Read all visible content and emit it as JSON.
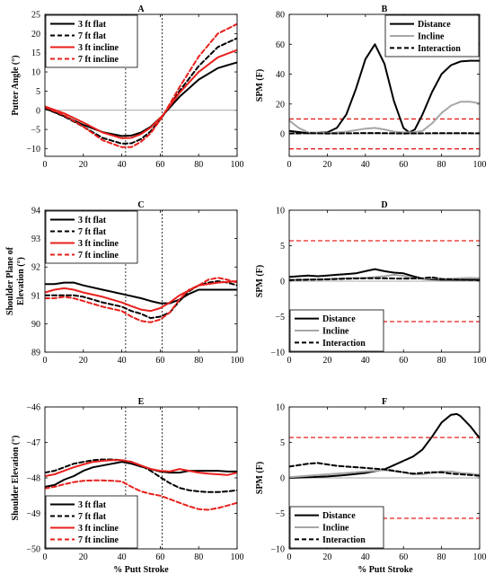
{
  "figure": {
    "xlabel": "% Putt Stroke"
  },
  "chart_data": [
    {
      "id": "A",
      "type": "line",
      "title": "A",
      "xlabel": "",
      "ylabel": "Putter Angle (°)",
      "xlim": [
        0,
        100
      ],
      "ylim": [
        -12,
        25
      ],
      "xticks": [
        0,
        20,
        40,
        60,
        80,
        100
      ],
      "yticks": [
        -10,
        -5,
        0,
        5,
        10,
        15,
        20,
        25
      ],
      "legend_position": "top-left",
      "zero_line": true,
      "vlines": [
        42,
        61
      ],
      "series": [
        {
          "name": "3 ft flat",
          "color": "#000000",
          "dash": "solid",
          "x": [
            0,
            10,
            20,
            30,
            40,
            45,
            50,
            55,
            61,
            70,
            80,
            90,
            100
          ],
          "y": [
            0.5,
            -1.5,
            -3.8,
            -5.7,
            -6.7,
            -6.6,
            -5.8,
            -4.3,
            -1.5,
            3.5,
            8.0,
            11.0,
            12.5
          ]
        },
        {
          "name": "7 ft flat",
          "color": "#000000",
          "dash": "dash",
          "x": [
            0,
            10,
            20,
            30,
            40,
            45,
            50,
            55,
            61,
            70,
            80,
            90,
            100
          ],
          "y": [
            0.5,
            -1.6,
            -4.3,
            -7.2,
            -8.7,
            -8.6,
            -7.5,
            -5.5,
            -1.8,
            5.0,
            11.5,
            16.5,
            18.8
          ]
        },
        {
          "name": "3 ft incline",
          "color": "#e8201c",
          "dash": "solid",
          "x": [
            0,
            10,
            20,
            30,
            40,
            45,
            50,
            55,
            61,
            70,
            80,
            90,
            100
          ],
          "y": [
            1.0,
            -0.8,
            -3.2,
            -5.8,
            -7.3,
            -7.2,
            -6.2,
            -4.5,
            -1.5,
            4.5,
            10.0,
            13.8,
            15.7
          ]
        },
        {
          "name": "7 ft incline",
          "color": "#e8201c",
          "dash": "dash",
          "x": [
            0,
            10,
            20,
            30,
            40,
            45,
            50,
            55,
            61,
            70,
            80,
            90,
            100
          ],
          "y": [
            0.8,
            -1.3,
            -4.3,
            -7.8,
            -9.6,
            -9.6,
            -8.2,
            -6.0,
            -1.8,
            6.0,
            14.0,
            20.0,
            22.5
          ]
        }
      ]
    },
    {
      "id": "B",
      "type": "line",
      "title": "B",
      "xlabel": "",
      "ylabel": "SPM (F)",
      "xlim": [
        0,
        100
      ],
      "ylim": [
        -15,
        80
      ],
      "xticks": [
        0,
        20,
        40,
        60,
        80,
        100
      ],
      "yticks": [
        0,
        20,
        40,
        60,
        80
      ],
      "legend_position": "top-right",
      "zero_line": true,
      "hthresholds": [
        10,
        -10
      ],
      "series": [
        {
          "name": "Distance",
          "color": "#000000",
          "dash": "solid",
          "x": [
            0,
            10,
            20,
            25,
            30,
            35,
            40,
            45,
            50,
            55,
            60,
            63,
            66,
            70,
            75,
            80,
            85,
            90,
            95,
            100
          ],
          "y": [
            2,
            0.5,
            1,
            4,
            13,
            30,
            50,
            60,
            47,
            22,
            4,
            1,
            3,
            13,
            28,
            40,
            46,
            48.5,
            49,
            49
          ]
        },
        {
          "name": "Incline",
          "color": "#a6a6a6",
          "dash": "solid",
          "x": [
            0,
            5,
            10,
            20,
            30,
            40,
            45,
            50,
            55,
            60,
            65,
            70,
            75,
            80,
            85,
            90,
            95,
            100
          ],
          "y": [
            9,
            4,
            1,
            0.5,
            1.5,
            3.5,
            4,
            3,
            1.5,
            1,
            1,
            2,
            7,
            14,
            19,
            21.5,
            21.5,
            20.5
          ]
        },
        {
          "name": "Interaction",
          "color": "#000000",
          "dash": "dash",
          "x": [
            0,
            10,
            20,
            30,
            40,
            50,
            60,
            70,
            80,
            90,
            100
          ],
          "y": [
            0.3,
            0.5,
            0.3,
            0.4,
            0.6,
            0.5,
            0.3,
            0.4,
            0.5,
            0.5,
            0.4
          ]
        }
      ]
    },
    {
      "id": "C",
      "type": "line",
      "title": "C",
      "xlabel": "",
      "ylabel": "Shoulder Plane of Elevation (°)",
      "xlim": [
        0,
        100
      ],
      "ylim": [
        89,
        94
      ],
      "xticks": [
        0,
        20,
        40,
        60,
        80,
        100
      ],
      "yticks": [
        89,
        90,
        91,
        92,
        93,
        94
      ],
      "legend_position": "top-left",
      "zero_line": false,
      "vlines": [
        42,
        61
      ],
      "series": [
        {
          "name": "3 ft flat",
          "color": "#000000",
          "dash": "solid",
          "x": [
            0,
            5,
            10,
            15,
            20,
            30,
            40,
            50,
            55,
            60,
            65,
            70,
            75,
            80,
            90,
            100
          ],
          "y": [
            91.4,
            91.4,
            91.45,
            91.45,
            91.35,
            91.2,
            91.05,
            90.9,
            90.8,
            90.72,
            90.72,
            90.85,
            91.05,
            91.2,
            91.2,
            91.2
          ]
        },
        {
          "name": "7 ft flat",
          "color": "#000000",
          "dash": "dash",
          "x": [
            0,
            5,
            10,
            15,
            20,
            30,
            40,
            45,
            50,
            55,
            60,
            65,
            70,
            75,
            80,
            85,
            90,
            95,
            100
          ],
          "y": [
            91.0,
            91.0,
            91.0,
            91.0,
            90.95,
            90.75,
            90.6,
            90.45,
            90.35,
            90.2,
            90.25,
            90.4,
            90.8,
            91.15,
            91.35,
            91.45,
            91.5,
            91.45,
            91.35
          ]
        },
        {
          "name": "3 ft incline",
          "color": "#e8201c",
          "dash": "solid",
          "x": [
            0,
            5,
            10,
            15,
            20,
            30,
            40,
            45,
            50,
            55,
            60,
            65,
            70,
            80,
            90,
            100
          ],
          "y": [
            91.1,
            91.2,
            91.25,
            91.2,
            91.1,
            90.95,
            90.75,
            90.62,
            90.5,
            90.45,
            90.55,
            90.75,
            91.0,
            91.35,
            91.45,
            91.5
          ]
        },
        {
          "name": "7 ft incline",
          "color": "#e8201c",
          "dash": "dash",
          "x": [
            0,
            5,
            10,
            15,
            20,
            30,
            40,
            45,
            50,
            55,
            60,
            65,
            70,
            75,
            80,
            85,
            90,
            95,
            100
          ],
          "y": [
            90.9,
            90.9,
            90.95,
            90.9,
            90.8,
            90.6,
            90.45,
            90.25,
            90.1,
            90.05,
            90.15,
            90.4,
            90.85,
            91.2,
            91.35,
            91.55,
            91.62,
            91.55,
            91.45
          ]
        }
      ]
    },
    {
      "id": "D",
      "type": "line",
      "title": "D",
      "xlabel": "",
      "ylabel": "SPM (F)",
      "xlim": [
        0,
        100
      ],
      "ylim": [
        -10,
        10
      ],
      "xticks": [
        0,
        20,
        40,
        60,
        80,
        100
      ],
      "yticks": [
        -10,
        -5,
        0,
        5,
        10
      ],
      "legend_position": "bottom-left",
      "zero_line": true,
      "hthresholds": [
        5.7,
        -5.7
      ],
      "series": [
        {
          "name": "Distance",
          "color": "#000000",
          "dash": "solid",
          "x": [
            0,
            5,
            10,
            15,
            20,
            25,
            30,
            35,
            40,
            45,
            50,
            55,
            60,
            65,
            70,
            75,
            80,
            85,
            90,
            95,
            100
          ],
          "y": [
            0.6,
            0.7,
            0.8,
            0.7,
            0.8,
            0.9,
            1.0,
            1.1,
            1.4,
            1.7,
            1.4,
            1.2,
            1.1,
            0.7,
            0.35,
            0.25,
            0.2,
            0.2,
            0.2,
            0.2,
            0.2
          ]
        },
        {
          "name": "Incline",
          "color": "#a6a6a6",
          "dash": "solid",
          "x": [
            0,
            10,
            20,
            30,
            40,
            50,
            55,
            60,
            65,
            70,
            75,
            80,
            85,
            90,
            95,
            100
          ],
          "y": [
            0.2,
            0.25,
            0.3,
            0.4,
            0.45,
            0.7,
            0.9,
            0.75,
            0.4,
            0.35,
            0.4,
            0.3,
            0.35,
            0.4,
            0.45,
            0.4
          ]
        },
        {
          "name": "Interaction",
          "color": "#000000",
          "dash": "dash",
          "x": [
            0,
            10,
            20,
            30,
            40,
            50,
            60,
            70,
            75,
            80,
            90,
            100
          ],
          "y": [
            0.15,
            0.2,
            0.25,
            0.35,
            0.4,
            0.4,
            0.35,
            0.4,
            0.55,
            0.3,
            0.2,
            0.15
          ]
        }
      ]
    },
    {
      "id": "E",
      "type": "line",
      "title": "E",
      "xlabel": "% Putt Stroke",
      "ylabel": "Shoulder Elevation (°)",
      "xlim": [
        0,
        100
      ],
      "ylim": [
        -50,
        -46
      ],
      "xticks": [
        0,
        20,
        40,
        60,
        80,
        100
      ],
      "yticks": [
        -50,
        -49,
        -48,
        -47,
        -46
      ],
      "legend_position": "bottom-left",
      "zero_line": false,
      "vlines": [
        42,
        61
      ],
      "series": [
        {
          "name": "3 ft flat",
          "color": "#000000",
          "dash": "solid",
          "x": [
            0,
            5,
            10,
            15,
            20,
            25,
            30,
            35,
            40,
            45,
            50,
            55,
            60,
            65,
            70,
            75,
            80,
            85,
            90,
            95,
            100
          ],
          "y": [
            -48.25,
            -48.2,
            -48.05,
            -47.95,
            -47.8,
            -47.7,
            -47.65,
            -47.6,
            -47.55,
            -47.6,
            -47.68,
            -47.75,
            -47.82,
            -47.85,
            -47.85,
            -47.8,
            -47.8,
            -47.8,
            -47.8,
            -47.82,
            -47.82
          ]
        },
        {
          "name": "7 ft flat",
          "color": "#000000",
          "dash": "dash",
          "x": [
            0,
            5,
            10,
            15,
            20,
            25,
            30,
            35,
            40,
            45,
            50,
            55,
            60,
            65,
            70,
            75,
            80,
            85,
            90,
            95,
            100
          ],
          "y": [
            -47.85,
            -47.8,
            -47.7,
            -47.6,
            -47.55,
            -47.5,
            -47.48,
            -47.48,
            -47.5,
            -47.55,
            -47.65,
            -47.8,
            -47.98,
            -48.15,
            -48.28,
            -48.35,
            -48.38,
            -48.4,
            -48.4,
            -48.38,
            -48.35
          ]
        },
        {
          "name": "3 ft incline",
          "color": "#e8201c",
          "dash": "solid",
          "x": [
            0,
            5,
            10,
            15,
            20,
            25,
            30,
            35,
            40,
            45,
            50,
            55,
            60,
            65,
            70,
            75,
            80,
            85,
            90,
            95,
            100
          ],
          "y": [
            -47.95,
            -47.9,
            -47.8,
            -47.7,
            -47.62,
            -47.55,
            -47.52,
            -47.5,
            -47.5,
            -47.55,
            -47.65,
            -47.75,
            -47.8,
            -47.82,
            -47.75,
            -47.8,
            -47.85,
            -47.88,
            -47.9,
            -47.92,
            -47.85
          ]
        },
        {
          "name": "7 ft incline",
          "color": "#e8201c",
          "dash": "dash",
          "x": [
            0,
            5,
            10,
            15,
            20,
            25,
            30,
            35,
            40,
            45,
            50,
            55,
            60,
            65,
            70,
            75,
            80,
            85,
            90,
            95,
            100
          ],
          "y": [
            -48.3,
            -48.25,
            -48.18,
            -48.12,
            -48.08,
            -48.07,
            -48.07,
            -48.08,
            -48.1,
            -48.25,
            -48.38,
            -48.45,
            -48.5,
            -48.6,
            -48.7,
            -48.8,
            -48.88,
            -48.9,
            -48.85,
            -48.78,
            -48.7
          ]
        }
      ]
    },
    {
      "id": "F",
      "type": "line",
      "title": "F",
      "xlabel": "% Putt Stroke",
      "ylabel": "SPM (F)",
      "xlim": [
        0,
        100
      ],
      "ylim": [
        -10,
        10
      ],
      "xticks": [
        0,
        20,
        40,
        60,
        80,
        100
      ],
      "yticks": [
        -10,
        -5,
        0,
        5,
        10
      ],
      "legend_position": "bottom-left",
      "zero_line": true,
      "hthresholds": [
        5.7,
        -5.7
      ],
      "series": [
        {
          "name": "Distance",
          "color": "#000000",
          "dash": "solid",
          "x": [
            0,
            10,
            20,
            30,
            40,
            50,
            55,
            60,
            65,
            70,
            75,
            80,
            85,
            88,
            90,
            95,
            100
          ],
          "y": [
            0.0,
            0.1,
            0.2,
            0.4,
            0.7,
            1.2,
            1.8,
            2.4,
            3.0,
            4.0,
            5.8,
            7.8,
            8.9,
            9.0,
            8.7,
            7.3,
            5.6
          ]
        },
        {
          "name": "Incline",
          "color": "#a6a6a6",
          "dash": "solid",
          "x": [
            0,
            10,
            20,
            30,
            40,
            50,
            60,
            65,
            70,
            75,
            80,
            85,
            90,
            95,
            100
          ],
          "y": [
            0.1,
            0.3,
            0.5,
            0.7,
            0.9,
            1.1,
            0.8,
            0.5,
            0.5,
            0.7,
            0.9,
            0.9,
            0.7,
            0.6,
            0.4
          ]
        },
        {
          "name": "Interaction",
          "color": "#000000",
          "dash": "dash",
          "x": [
            0,
            5,
            10,
            15,
            20,
            25,
            30,
            35,
            40,
            45,
            50,
            55,
            60,
            65,
            70,
            75,
            80,
            85,
            90,
            95,
            100
          ],
          "y": [
            1.6,
            1.8,
            2.0,
            2.1,
            1.9,
            1.7,
            1.6,
            1.5,
            1.4,
            1.3,
            1.2,
            1.0,
            0.8,
            0.6,
            0.7,
            0.8,
            0.8,
            0.6,
            0.5,
            0.4,
            0.3
          ]
        }
      ]
    }
  ]
}
